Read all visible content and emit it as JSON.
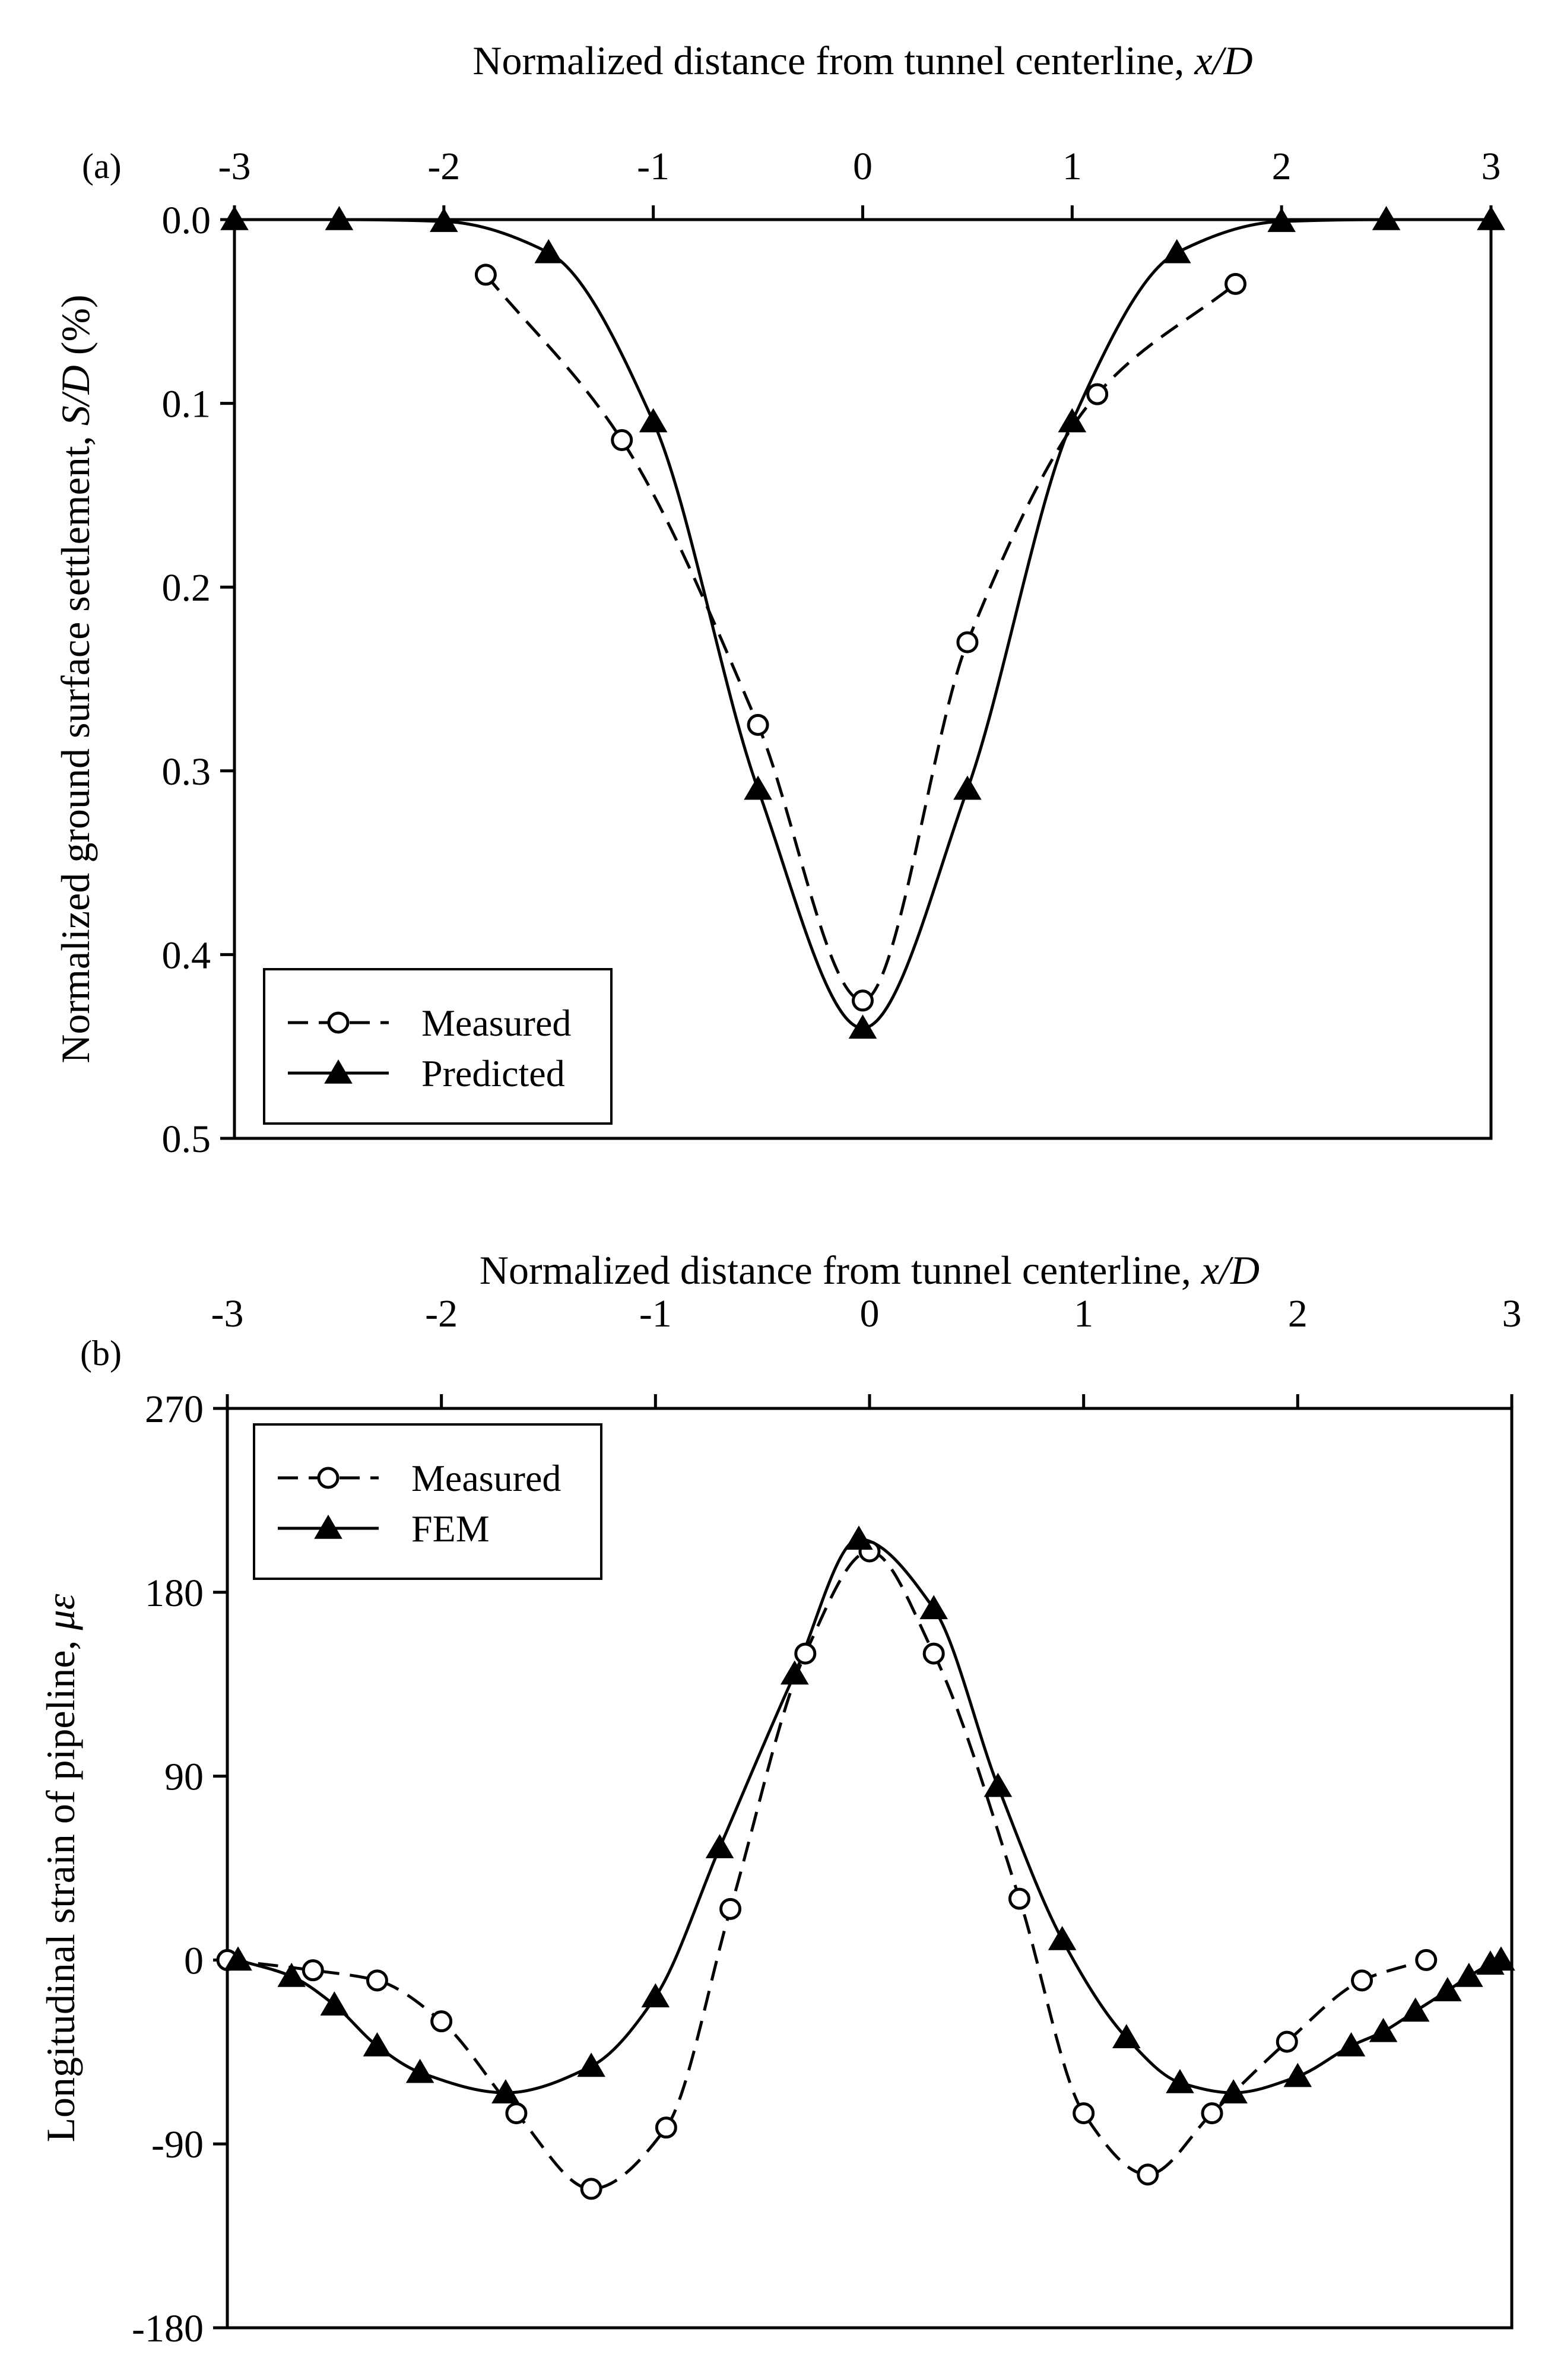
{
  "chart_data": [
    {
      "panel_label": "(a)",
      "type": "line",
      "title": "",
      "xlabel_text": "Normalized distance from tunnel centerline, ",
      "xlabel_var": "x/D",
      "xaxis_position": "top",
      "xlim": [
        -3,
        3
      ],
      "xticks": [
        -3,
        -2,
        -1,
        0,
        1,
        2,
        3
      ],
      "xtick_labels": [
        "-3",
        "-2",
        "-1",
        "0",
        "1",
        "2",
        "3"
      ],
      "ylabel_prefix": "Normalized ground surface settlement, ",
      "ylabel_var": "S/D",
      "ylabel_suffix": " (%)",
      "ylim": [
        0,
        0.5
      ],
      "y_inverted": true,
      "yticks": [
        0,
        0.1,
        0.2,
        0.3,
        0.4,
        0.5
      ],
      "ytick_labels": [
        "0.0",
        "0.1",
        "0.2",
        "0.3",
        "0.4",
        "0.5"
      ],
      "legend_position": "bottom-left",
      "series": [
        {
          "name": "Measured",
          "marker": "circle-open",
          "line": "dashed",
          "x": [
            -1.8,
            -1.15,
            -0.5,
            0,
            0.5,
            1.12,
            1.78
          ],
          "y": [
            0.03,
            0.12,
            0.275,
            0.425,
            0.23,
            0.095,
            0.035
          ]
        },
        {
          "name": "Predicted",
          "marker": "triangle-filled",
          "line": "solid",
          "x": [
            -3,
            -2.5,
            -2,
            -1.5,
            -1,
            -0.5,
            0,
            0.5,
            1,
            1.5,
            2,
            2.5,
            3
          ],
          "y": [
            0,
            0,
            0.001,
            0.018,
            0.11,
            0.31,
            0.44,
            0.31,
            0.11,
            0.018,
            0.001,
            0,
            0
          ]
        }
      ]
    },
    {
      "panel_label": "(b)",
      "type": "line",
      "title": "",
      "xlabel_text": "Normalized distance from tunnel centerline, ",
      "xlabel_var": "x/D",
      "xaxis_position": "top",
      "xlim": [
        -3,
        3
      ],
      "xticks": [
        -3,
        -2,
        -1,
        0,
        1,
        2,
        3
      ],
      "xtick_labels": [
        "-3",
        "-2",
        "-1",
        "0",
        "1",
        "2",
        "3"
      ],
      "ylabel_prefix": "Longitudinal strain of pipeline, ",
      "ylabel_var": "με",
      "ylabel_suffix": "",
      "ylim": [
        -180,
        270
      ],
      "y_inverted": false,
      "yticks": [
        270,
        180,
        90,
        0,
        -90,
        -180
      ],
      "ytick_labels": [
        "270",
        "180",
        "90",
        "0",
        "-90",
        "-180"
      ],
      "legend_position": "top-left",
      "series": [
        {
          "name": "Measured",
          "marker": "circle-open",
          "line": "dashed",
          "x": [
            -3,
            -2.6,
            -2.3,
            -2,
            -1.65,
            -1.3,
            -0.95,
            -0.65,
            -0.3,
            0,
            0.3,
            0.7,
            1,
            1.3,
            1.6,
            1.95,
            2.3,
            2.6
          ],
          "y": [
            0,
            -5,
            -10,
            -30,
            -75,
            -112,
            -82,
            25,
            150,
            200,
            150,
            30,
            -75,
            -105,
            -75,
            -40,
            -10,
            0
          ]
        },
        {
          "name": "FEM",
          "marker": "triangle-filled",
          "line": "solid",
          "x": [
            -2.95,
            -2.7,
            -2.5,
            -2.3,
            -2.1,
            -1.7,
            -1.3,
            -1,
            -0.7,
            -0.35,
            -0.05,
            0.3,
            0.6,
            0.9,
            1.2,
            1.45,
            1.7,
            2,
            2.25,
            2.4,
            2.55,
            2.7,
            2.8,
            2.9,
            2.95
          ],
          "y": [
            0,
            -8,
            -22,
            -42,
            -55,
            -65,
            -52,
            -18,
            55,
            140,
            206,
            172,
            85,
            10,
            -38,
            -60,
            -65,
            -57,
            -42,
            -35,
            -25,
            -15,
            -8,
            -2,
            0
          ]
        }
      ]
    }
  ]
}
